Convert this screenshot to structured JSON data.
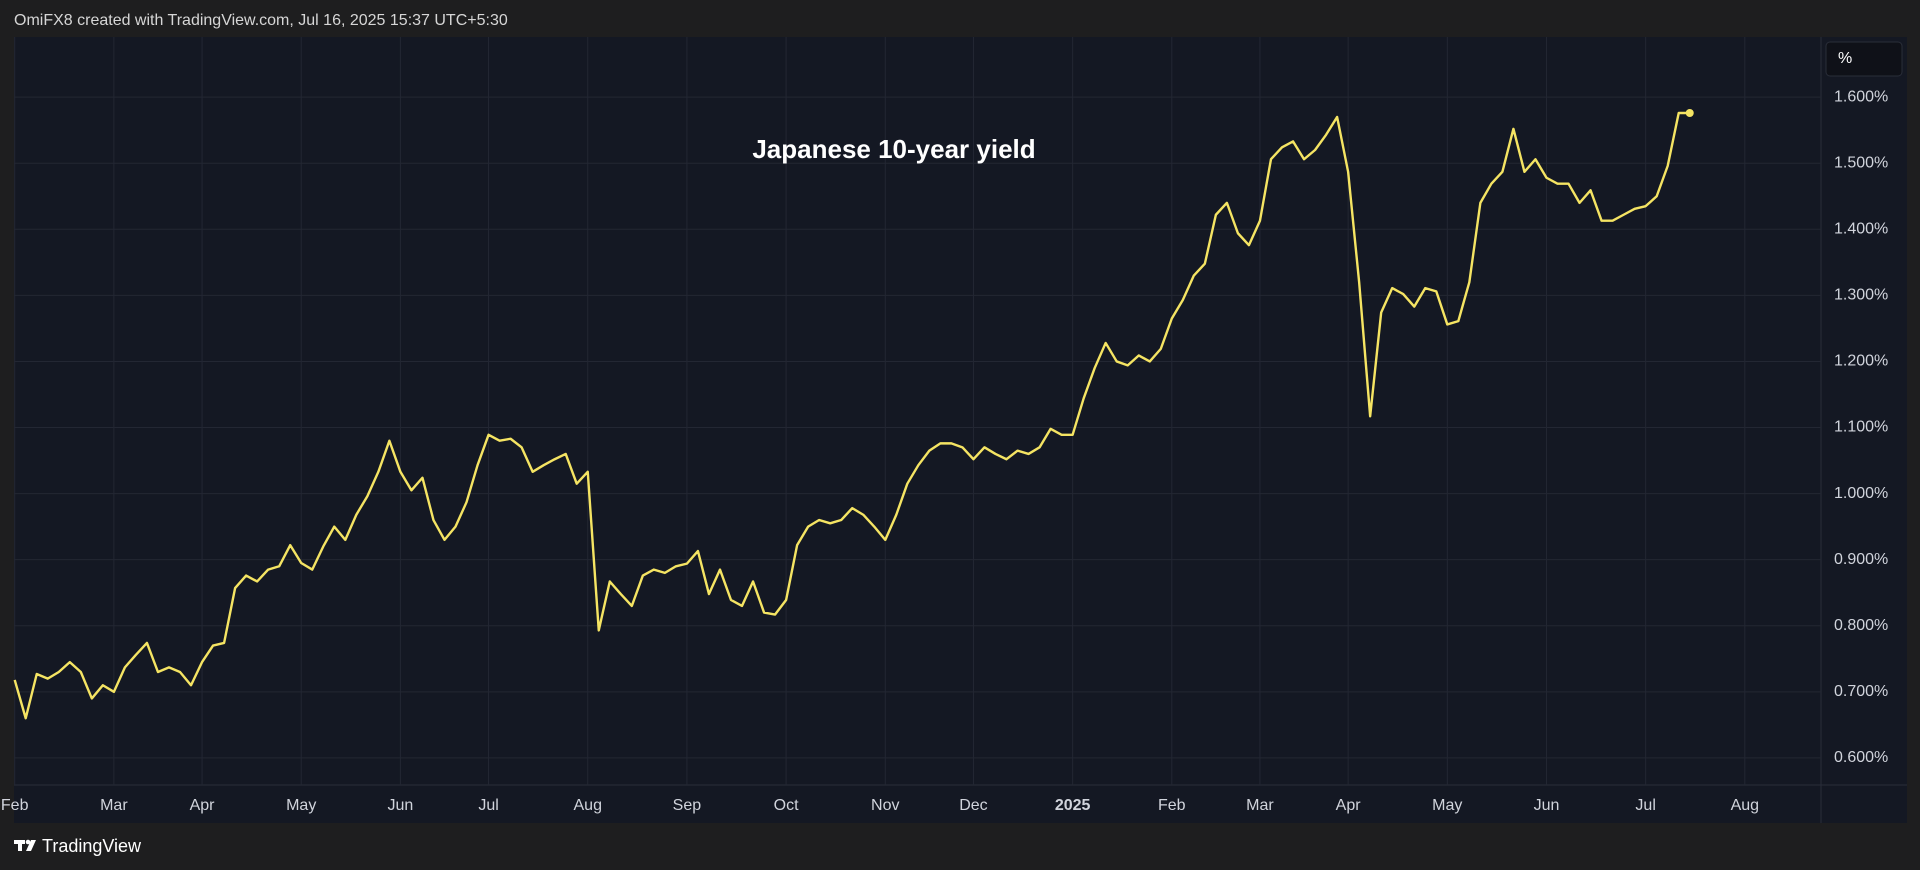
{
  "header": "OmiFX8 created with TradingView.com, Jul 16, 2025 15:37 UTC+5:30",
  "footer": "TradingView",
  "chart_data": {
    "type": "line",
    "title": "Japanese 10-year yield",
    "ylabel": "%",
    "color": "#f5e463",
    "grid": true,
    "categories": [
      "Feb",
      null,
      null,
      null,
      null,
      null,
      null,
      null,
      null,
      "Mar",
      null,
      null,
      null,
      null,
      null,
      null,
      null,
      "Apr",
      null,
      null,
      null,
      null,
      null,
      null,
      null,
      null,
      "May",
      null,
      null,
      null,
      null,
      null,
      null,
      null,
      null,
      "Jun",
      null,
      null,
      null,
      null,
      null,
      null,
      null,
      "Jul",
      null,
      null,
      null,
      null,
      null,
      null,
      null,
      null,
      "Aug",
      null,
      null,
      null,
      null,
      null,
      null,
      null,
      null,
      "Sep",
      null,
      null,
      null,
      null,
      null,
      null,
      null,
      null,
      "Oct",
      null,
      null,
      null,
      null,
      null,
      null,
      null,
      null,
      "Nov",
      null,
      null,
      null,
      null,
      null,
      null,
      null,
      "Dec",
      null,
      null,
      null,
      null,
      null,
      null,
      null,
      null,
      "2025",
      null,
      null,
      null,
      null,
      null,
      null,
      null,
      null,
      "Feb",
      null,
      null,
      null,
      null,
      null,
      null,
      null,
      "Mar",
      null,
      null,
      null,
      null,
      null,
      null,
      null,
      "Apr",
      null,
      null,
      null,
      null,
      null,
      null,
      null,
      null,
      "May",
      null,
      null,
      null,
      null,
      null,
      null,
      null,
      null,
      "Jun",
      null,
      null,
      null,
      null,
      null,
      null,
      null,
      null,
      "Jul",
      null,
      null,
      null,
      null,
      null,
      null,
      null,
      null,
      "Aug",
      null,
      null,
      null,
      null,
      null
    ],
    "values": [
      0.718,
      0.66,
      0.727,
      0.72,
      0.73,
      0.745,
      0.73,
      0.69,
      0.71,
      0.7,
      0.737,
      0.756,
      0.774,
      0.73,
      0.737,
      0.73,
      0.71,
      0.745,
      0.77,
      0.774,
      0.857,
      0.876,
      0.867,
      0.885,
      0.89,
      0.922,
      0.895,
      0.885,
      0.92,
      0.95,
      0.93,
      0.968,
      0.996,
      1.033,
      1.08,
      1.033,
      1.005,
      1.024,
      0.96,
      0.93,
      0.95,
      0.987,
      1.043,
      1.089,
      1.08,
      1.083,
      1.07,
      1.033,
      1.043,
      1.052,
      1.06,
      1.015,
      1.033,
      0.793,
      0.867,
      0.848,
      0.83,
      0.876,
      0.885,
      0.88,
      0.89,
      0.894,
      0.913,
      0.848,
      0.885,
      0.839,
      0.83,
      0.867,
      0.82,
      0.817,
      0.839,
      0.922,
      0.95,
      0.96,
      0.955,
      0.96,
      0.978,
      0.968,
      0.95,
      0.93,
      0.968,
      1.015,
      1.043,
      1.065,
      1.076,
      1.076,
      1.07,
      1.052,
      1.07,
      1.06,
      1.052,
      1.065,
      1.06,
      1.07,
      1.098,
      1.089,
      1.089,
      1.144,
      1.19,
      1.228,
      1.2,
      1.194,
      1.209,
      1.2,
      1.219,
      1.265,
      1.293,
      1.33,
      1.348,
      1.422,
      1.44,
      1.394,
      1.376,
      1.413,
      1.506,
      1.524,
      1.533,
      1.506,
      1.52,
      1.543,
      1.57,
      1.487,
      1.32,
      1.117,
      1.274,
      1.311,
      1.302,
      1.283,
      1.311,
      1.306,
      1.256,
      1.261,
      1.32,
      1.44,
      1.469,
      1.487,
      1.552,
      1.487,
      1.506,
      1.478,
      1.469,
      1.469,
      1.44,
      1.459,
      1.413,
      1.413,
      1.422,
      1.431,
      1.435,
      1.45,
      1.496,
      1.576,
      1.576,
      null,
      null,
      null,
      null,
      null,
      null,
      null,
      null,
      null,
      null
    ],
    "ylim": [
      0.559,
      1.691
    ],
    "yticks": [
      {
        "value": 0.6,
        "label": "0.600%"
      },
      {
        "value": 0.7,
        "label": "0.700%"
      },
      {
        "value": 0.8,
        "label": "0.800%"
      },
      {
        "value": 0.9,
        "label": "0.900%"
      },
      {
        "value": 1.0,
        "label": "1.000%"
      },
      {
        "value": 1.1,
        "label": "1.100%"
      },
      {
        "value": 1.2,
        "label": "1.200%"
      },
      {
        "value": 1.3,
        "label": "1.300%"
      },
      {
        "value": 1.4,
        "label": "1.400%"
      },
      {
        "value": 1.5,
        "label": "1.500%"
      },
      {
        "value": 1.6,
        "label": "1.600%"
      }
    ]
  }
}
